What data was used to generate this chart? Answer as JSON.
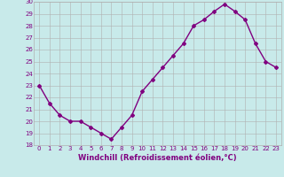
{
  "x": [
    0,
    1,
    2,
    3,
    4,
    5,
    6,
    7,
    8,
    9,
    10,
    11,
    12,
    13,
    14,
    15,
    16,
    17,
    18,
    19,
    20,
    21,
    22,
    23
  ],
  "y": [
    23.0,
    21.5,
    20.5,
    20.0,
    20.0,
    19.5,
    19.0,
    18.5,
    19.5,
    20.5,
    22.5,
    23.5,
    24.5,
    25.5,
    26.5,
    28.0,
    28.5,
    29.2,
    29.8,
    29.2,
    28.5,
    26.5,
    25.0,
    24.5
  ],
  "line_color": "#800080",
  "marker": "D",
  "marker_size": 2,
  "bg_color": "#c8eaea",
  "grid_color": "#b0b0b0",
  "xlabel": "Windchill (Refroidissement éolien,°C)",
  "xlabel_color": "#800080",
  "ylim": [
    18,
    30
  ],
  "xlim": [
    -0.5,
    23.5
  ],
  "yticks": [
    18,
    19,
    20,
    21,
    22,
    23,
    24,
    25,
    26,
    27,
    28,
    29,
    30
  ],
  "xticks": [
    0,
    1,
    2,
    3,
    4,
    5,
    6,
    7,
    8,
    9,
    10,
    11,
    12,
    13,
    14,
    15,
    16,
    17,
    18,
    19,
    20,
    21,
    22,
    23
  ],
  "tick_fontsize": 5.0,
  "xlabel_fontsize": 6.0,
  "tick_color": "#800080",
  "linewidth": 1.0
}
